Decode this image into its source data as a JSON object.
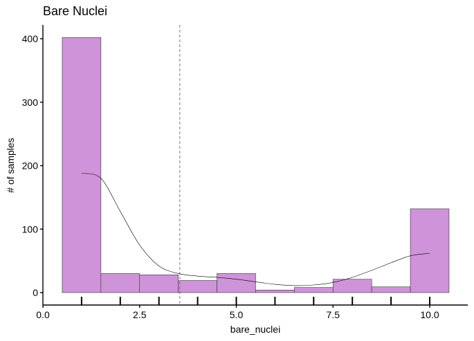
{
  "chart_data": {
    "type": "bar",
    "title": "Bare Nuclei",
    "xlabel": "bare_nuclei",
    "ylabel": "# of samples",
    "xlim": [
      0,
      11
    ],
    "ylim": [
      0,
      420
    ],
    "x_ticks": [
      {
        "value": 0,
        "label": "0.0"
      },
      {
        "value": 2.5,
        "label": "2.5"
      },
      {
        "value": 5,
        "label": "5.0"
      },
      {
        "value": 7.5,
        "label": "7.5"
      },
      {
        "value": 10,
        "label": "10.0"
      }
    ],
    "y_ticks": [
      {
        "value": 0,
        "label": "0"
      },
      {
        "value": 100,
        "label": "100"
      },
      {
        "value": 200,
        "label": "200"
      },
      {
        "value": 300,
        "label": "300"
      },
      {
        "value": 400,
        "label": "400"
      }
    ],
    "bins": [
      {
        "x0": 0.5,
        "x1": 1.5,
        "count": 402
      },
      {
        "x0": 1.5,
        "x1": 2.5,
        "count": 30
      },
      {
        "x0": 2.5,
        "x1": 3.5,
        "count": 28
      },
      {
        "x0": 3.5,
        "x1": 4.5,
        "count": 19
      },
      {
        "x0": 4.5,
        "x1": 5.5,
        "count": 30
      },
      {
        "x0": 5.5,
        "x1": 6.5,
        "count": 4
      },
      {
        "x0": 6.5,
        "x1": 7.5,
        "count": 8
      },
      {
        "x0": 7.5,
        "x1": 8.5,
        "count": 21
      },
      {
        "x0": 8.5,
        "x1": 9.5,
        "count": 9
      },
      {
        "x0": 9.5,
        "x1": 10.5,
        "count": 132
      }
    ],
    "density_curve": {
      "x": [
        1,
        1.5,
        2,
        2.5,
        3,
        3.5,
        4,
        4.5,
        5,
        5.5,
        6,
        6.5,
        7,
        7.5,
        8,
        8.5,
        9,
        9.5,
        10
      ],
      "y": [
        188,
        180,
        128,
        75,
        42,
        30,
        26,
        24,
        21,
        17,
        13,
        11,
        12,
        16,
        24,
        35,
        47,
        58,
        62
      ]
    },
    "mean_line": 3.54,
    "rug_x": [
      1,
      2,
      3,
      4,
      5,
      6,
      7,
      8,
      9,
      10
    ],
    "colors": {
      "bar_fill": "#ce93d8",
      "bar_stroke": "#333333",
      "density": "#000000",
      "mean_line": "#555555"
    },
    "grid": false,
    "legend": "none"
  }
}
